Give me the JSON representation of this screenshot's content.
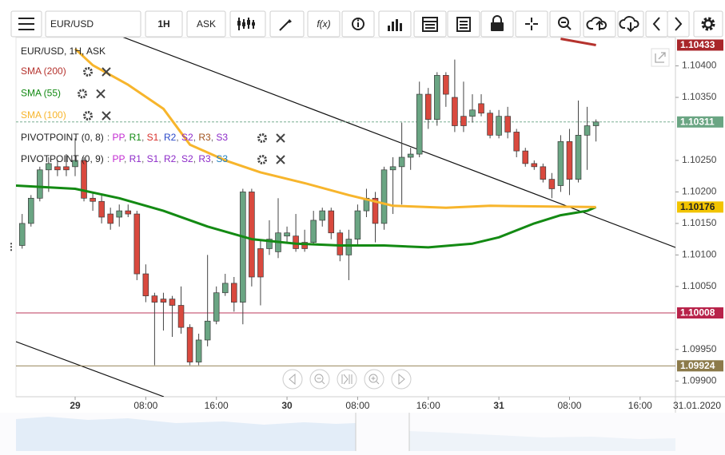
{
  "toolbar": {
    "symbol": "EUR/USD",
    "timeframe": "1H",
    "price_type": "ASK",
    "function_label": "f(x)"
  },
  "chart_data": {
    "type": "candlestick",
    "title": "EUR/USD, 1H, ASK",
    "x": [
      -6,
      -5,
      -4,
      -3,
      -2,
      -1,
      0,
      1,
      2,
      3,
      4,
      5,
      6,
      7,
      8,
      9,
      10,
      11,
      12,
      13,
      14,
      15,
      16,
      17,
      18,
      19,
      20,
      21,
      22,
      23,
      24,
      25,
      26,
      27,
      28,
      29,
      30,
      31,
      32,
      33,
      34,
      35,
      36,
      37,
      38,
      39,
      40,
      41,
      42,
      43,
      44,
      45,
      46,
      47,
      48,
      49,
      50,
      51,
      52,
      53,
      54,
      55,
      56,
      57,
      58,
      59
    ],
    "open": [
      1.10115,
      1.1015,
      1.1019,
      1.10235,
      1.1024,
      1.1024,
      1.1024,
      1.1025,
      1.1019,
      1.10185,
      1.10165,
      1.1016,
      1.1017,
      1.10165,
      1.1007,
      1.10035,
      1.1003,
      1.1003,
      1.1002,
      1.09985,
      1.0993,
      1.09965,
      1.09995,
      1.1004,
      1.10055,
      1.10025,
      1.102,
      1.1011,
      1.1011,
      1.10105,
      1.1013,
      1.1013,
      1.1012,
      1.1012,
      1.10155,
      1.1017,
      1.10135,
      1.101,
      1.10125,
      1.1017,
      1.1019,
      1.1015,
      1.10235,
      1.1024,
      1.10255,
      1.1026,
      1.10355,
      1.10315,
      1.10385,
      1.1035,
      1.1032,
      1.1032,
      1.1034,
      1.10325,
      1.1029,
      1.1032,
      1.10295,
      1.10265,
      1.10245,
      1.1024,
      1.1022,
      1.1021,
      1.1028,
      1.1022,
      1.1029,
      1.10305
    ],
    "high": [
      1.10165,
      1.10195,
      1.1024,
      1.10255,
      1.1025,
      1.1026,
      1.10285,
      1.10255,
      1.102,
      1.10195,
      1.10175,
      1.1018,
      1.1018,
      1.1017,
      1.10085,
      1.1004,
      1.1004,
      1.10035,
      1.1005,
      1.0999,
      1.09975,
      1.101,
      1.1005,
      1.1007,
      1.10065,
      1.10205,
      1.10205,
      1.10125,
      1.10155,
      1.1019,
      1.10145,
      1.10165,
      1.1014,
      1.1017,
      1.10175,
      1.10175,
      1.1014,
      1.1014,
      1.1018,
      1.10205,
      1.102,
      1.1024,
      1.10255,
      1.1031,
      1.1027,
      1.10375,
      1.10365,
      1.1039,
      1.1039,
      1.1041,
      1.10375,
      1.10355,
      1.10355,
      1.1033,
      1.1033,
      1.10335,
      1.103,
      1.1027,
      1.1025,
      1.10245,
      1.1023,
      1.1029,
      1.103,
      1.10345,
      1.10335,
      1.10315
    ],
    "low": [
      1.1011,
      1.10145,
      1.10185,
      1.102,
      1.10225,
      1.10225,
      1.10225,
      1.10185,
      1.1017,
      1.1015,
      1.1014,
      1.10145,
      1.1016,
      1.1006,
      1.10025,
      1.09925,
      1.0998,
      1.0997,
      1.09975,
      1.09925,
      1.09925,
      1.09955,
      1.0999,
      1.10035,
      1.1001,
      1.0999,
      1.1005,
      1.1002,
      1.101,
      1.10095,
      1.1012,
      1.10105,
      1.10105,
      1.10115,
      1.10145,
      1.10125,
      1.1009,
      1.1006,
      1.10115,
      1.1016,
      1.1012,
      1.1014,
      1.10165,
      1.1018,
      1.10235,
      1.10255,
      1.103,
      1.10305,
      1.10335,
      1.10295,
      1.10295,
      1.1031,
      1.1032,
      1.10285,
      1.10285,
      1.10285,
      1.10255,
      1.1024,
      1.10235,
      1.10215,
      1.1019,
      1.102,
      1.10195,
      1.10215,
      1.10235,
      1.1028
    ],
    "close": [
      1.1015,
      1.1019,
      1.10235,
      1.10245,
      1.10235,
      1.10235,
      1.1025,
      1.1019,
      1.10185,
      1.1016,
      1.1015,
      1.1017,
      1.10165,
      1.1007,
      1.10035,
      1.10025,
      1.10025,
      1.1002,
      1.09985,
      1.0993,
      1.09965,
      1.09995,
      1.1004,
      1.10055,
      1.10025,
      1.102,
      1.10065,
      1.10065,
      1.10125,
      1.10135,
      1.10135,
      1.1011,
      1.1011,
      1.10155,
      1.1017,
      1.10135,
      1.101,
      1.10125,
      1.1017,
      1.1019,
      1.1015,
      1.10235,
      1.1024,
      1.10255,
      1.1026,
      1.10355,
      1.10315,
      1.10385,
      1.10355,
      1.10305,
      1.10305,
      1.1033,
      1.10325,
      1.1029,
      1.1032,
      1.10295,
      1.10265,
      1.10245,
      1.1024,
      1.1022,
      1.10205,
      1.1028,
      1.1022,
      1.1029,
      1.10305,
      1.10311
    ],
    "up_color": "#6aa583",
    "down_color": "#d9493e",
    "xlim": [
      -6.7,
      68
    ],
    "ylim": [
      1.09875,
      1.10445
    ],
    "xticks": [
      {
        "value": 0,
        "label": "29"
      },
      {
        "value": 8,
        "label": "08:00"
      },
      {
        "value": 16,
        "label": "16:00"
      },
      {
        "value": 24,
        "label": "30"
      },
      {
        "value": 32,
        "label": "08:00"
      },
      {
        "value": 40,
        "label": "16:00"
      },
      {
        "value": 48,
        "label": "31"
      },
      {
        "value": 56,
        "label": "08:00"
      },
      {
        "value": 64,
        "label": "16:00"
      }
    ],
    "yticks": [
      {
        "value": 1.104,
        "label": "1.10400"
      },
      {
        "value": 1.1035,
        "label": "1.10350"
      },
      {
        "value": 1.1025,
        "label": "1.10250"
      },
      {
        "value": 1.102,
        "label": "1.10200"
      },
      {
        "value": 1.1015,
        "label": "1.10150"
      },
      {
        "value": 1.101,
        "label": "1.10100"
      },
      {
        "value": 1.1005,
        "label": "1.10050"
      },
      {
        "value": 1.0995,
        "label": "1.09950"
      },
      {
        "value": 1.099,
        "label": "1.09900"
      }
    ],
    "date_label": "31.01.2020",
    "overlays": [
      {
        "name": "SMA (200)",
        "color": "#b5322d",
        "x": [
          55,
          59
        ],
        "values": [
          1.10443,
          1.10433
        ]
      },
      {
        "name": "SMA (55)",
        "color": "#138a13",
        "x": [
          -6.7,
          0,
          5,
          10,
          15,
          20,
          25,
          30,
          35,
          40,
          45,
          48,
          52,
          55,
          58,
          59
        ],
        "values": [
          1.1021,
          1.10205,
          1.1019,
          1.1017,
          1.10145,
          1.10125,
          1.10118,
          1.10115,
          1.10115,
          1.10112,
          1.10118,
          1.10128,
          1.1015,
          1.10163,
          1.1017,
          1.10176
        ]
      },
      {
        "name": "SMA (100)",
        "color": "#f7b52c",
        "x": [
          0,
          2,
          6,
          10,
          13,
          17,
          21,
          26,
          31,
          36,
          42,
          47,
          53,
          59
        ],
        "values": [
          1.10427,
          1.10401,
          1.1037,
          1.10332,
          1.10275,
          1.1025,
          1.10231,
          1.10214,
          1.10195,
          1.10178,
          1.10175,
          1.10178,
          1.10177,
          1.10176
        ]
      }
    ],
    "price_markers": [
      {
        "value": 1.10433,
        "color": "#a8262a",
        "line": "none"
      },
      {
        "value": 1.10311,
        "color": "#6aa583",
        "line": "dashed"
      },
      {
        "value": 1.10176,
        "color": "#f2c400",
        "line": "none"
      },
      {
        "value": 1.10008,
        "color": "#b8234a",
        "line": "solid"
      },
      {
        "value": 1.09924,
        "color": "#8c7a4a",
        "line": "solid"
      }
    ],
    "pivot_legend": [
      {
        "name": "PIVOTPOINT (0, 8)",
        "items": [
          "PP",
          "R1",
          "S1",
          "R2",
          "S2",
          "R3",
          "S3"
        ],
        "colors": [
          "#c22ad1",
          "#138a13",
          "#d9302b",
          "#2a48c8",
          "#8c2ac8",
          "#a0521e",
          "#8c2ac8"
        ]
      },
      {
        "name": "PIVOTPOINT (0, 9)",
        "items": [
          "PP",
          "R1",
          "S1",
          "R2",
          "S2",
          "R3",
          "S3"
        ],
        "colors": [
          "#c22ad1",
          "#8c2ac8",
          "#8c2ac8",
          "#8c2ac8",
          "#8c2ac8",
          "#8c2ac8",
          "#1f7fbf"
        ]
      }
    ]
  }
}
